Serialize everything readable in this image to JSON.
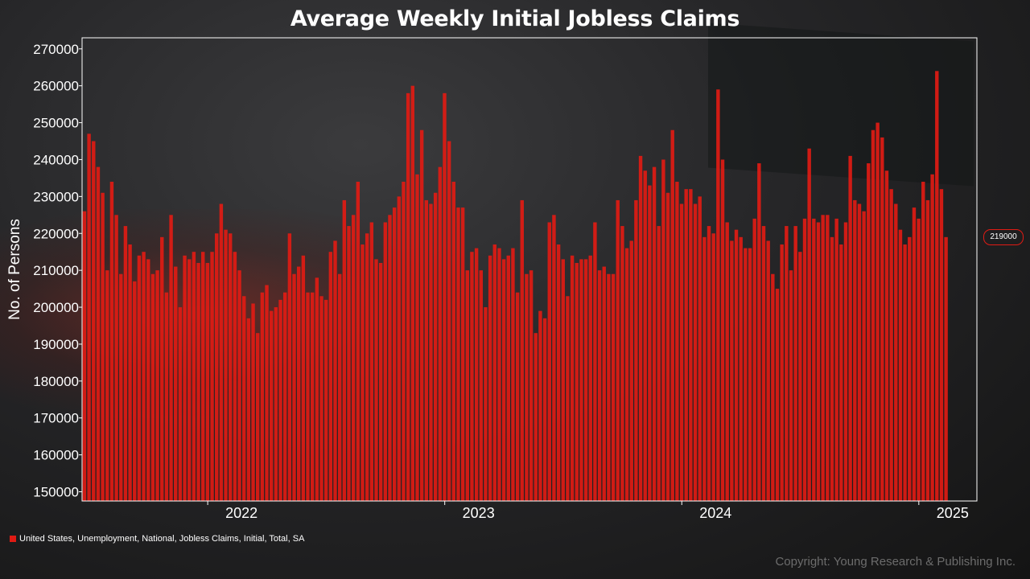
{
  "chart_data": {
    "type": "bar",
    "title": "Average Weekly Initial Jobless Claims",
    "ylabel": "No. of Persons",
    "xlabel": "",
    "ylim": [
      147500,
      273000
    ],
    "yticks": [
      150000,
      160000,
      170000,
      180000,
      190000,
      200000,
      210000,
      220000,
      230000,
      240000,
      250000,
      260000,
      270000
    ],
    "xlim": [
      2021.47,
      2025.245
    ],
    "xticks": [
      {
        "label": "2022",
        "x": 2022.0
      },
      {
        "label": "2023",
        "x": 2023.0
      },
      {
        "label": "2024",
        "x": 2024.0
      },
      {
        "label": "2025",
        "x": 2025.0
      }
    ],
    "x_start": 2021.48,
    "x_step": 0.019231,
    "series": [
      {
        "name": "United States, Unemployment, National, Jobless Claims, Initial, Total, SA",
        "color": "#e01b14",
        "values": [
          226000,
          247000,
          245000,
          238000,
          231000,
          210000,
          234000,
          225000,
          209000,
          222000,
          217000,
          207000,
          214000,
          215000,
          213000,
          209000,
          210000,
          219000,
          204000,
          225000,
          211000,
          200000,
          214000,
          213000,
          215000,
          212000,
          215000,
          212000,
          215000,
          220000,
          228000,
          221000,
          220000,
          215000,
          210000,
          203000,
          197000,
          201000,
          193000,
          204000,
          206000,
          199000,
          200000,
          202000,
          204000,
          220000,
          209000,
          211000,
          214000,
          204000,
          204000,
          208000,
          203000,
          202000,
          215000,
          218000,
          209000,
          229000,
          222000,
          225000,
          234000,
          217000,
          220000,
          223000,
          213000,
          212000,
          223000,
          225000,
          227000,
          230000,
          234000,
          258000,
          260000,
          236000,
          248000,
          229000,
          228000,
          231000,
          238000,
          258000,
          245000,
          234000,
          227000,
          227000,
          210000,
          215000,
          216000,
          210000,
          200000,
          214000,
          217000,
          216000,
          213000,
          214000,
          216000,
          204000,
          229000,
          209000,
          210000,
          193000,
          199000,
          197000,
          223000,
          225000,
          217000,
          213000,
          203000,
          214000,
          212000,
          213000,
          213000,
          214000,
          223000,
          210000,
          211000,
          209000,
          209000,
          229000,
          222000,
          216000,
          218000,
          229000,
          241000,
          237000,
          233000,
          238000,
          222000,
          240000,
          231000,
          248000,
          234000,
          228000,
          232000,
          232000,
          228000,
          230000,
          219000,
          222000,
          220000,
          259000,
          240000,
          223000,
          218000,
          221000,
          219000,
          216000,
          216000,
          224000,
          239000,
          222000,
          218000,
          209000,
          205000,
          217000,
          222000,
          210000,
          222000,
          215000,
          224000,
          243000,
          224000,
          223000,
          225000,
          225000,
          219000,
          224000,
          217000,
          223000,
          241000,
          229000,
          228000,
          226000,
          239000,
          248000,
          250000,
          246000,
          237000,
          232000,
          228000,
          221000,
          217000,
          219000,
          227000,
          224000,
          234000,
          229000,
          236000,
          264000,
          232000,
          219000
        ]
      }
    ],
    "last_value_label": "219000",
    "grid": false,
    "legend_position": "bottom-left"
  },
  "copyright": "Copyright: Young Research & Publishing Inc."
}
